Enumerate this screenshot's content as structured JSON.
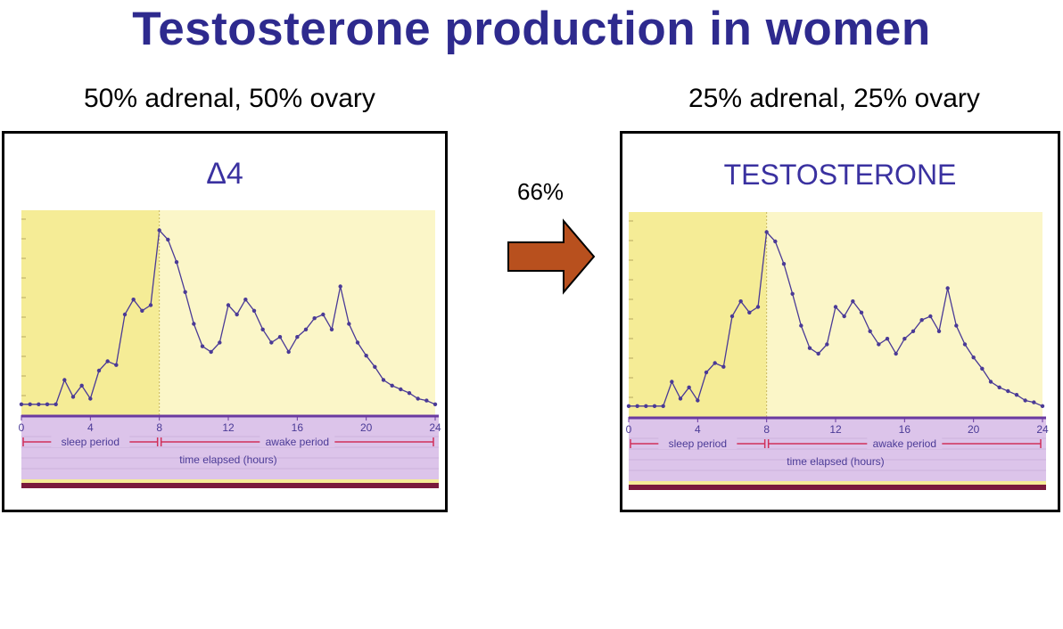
{
  "title": "Testosterone production in women",
  "left": {
    "subtitle": "50% adrenal, 50% ovary",
    "label": "Δ4"
  },
  "right": {
    "subtitle": "25% adrenal, 25% ovary",
    "label": "TESTOSTERONE"
  },
  "arrow": {
    "label": "66%",
    "color": "#b8501e",
    "icon": "right-arrow-icon"
  },
  "colors": {
    "title": "#2e2a8e",
    "sleep_band": "#f5ec96",
    "awake_band": "#fbf6c8",
    "series": "#4a3a96",
    "axis_band": "#dcc4ea",
    "axis_bar": "#7a1a3c",
    "period_marker": "#d0305a"
  },
  "chart_data": [
    {
      "type": "line",
      "title": "Δ4",
      "x_ticks": [
        "0",
        "4",
        "8",
        "12",
        "16",
        "20",
        "24"
      ],
      "xlim": [
        0,
        24
      ],
      "ylim": [
        0,
        1
      ],
      "xlabel": "time elapsed (hours)",
      "period_labels": [
        "sleep period",
        "awake period"
      ],
      "sleep_period": [
        0,
        8
      ],
      "awake_period": [
        8,
        24
      ],
      "series": [
        {
          "x": [
            0,
            0.5,
            1,
            1.5,
            2,
            2.5,
            3,
            3.5,
            4,
            4.5,
            5,
            5.5,
            6,
            6.5,
            7,
            7.5,
            8,
            8.5,
            9,
            9.5,
            10,
            10.5,
            11,
            11.5,
            12,
            12.5,
            13,
            13.5,
            14,
            14.5,
            15,
            15.5,
            16,
            16.5,
            17,
            17.5,
            18,
            18.5,
            19,
            19.5,
            20,
            20.5,
            21,
            21.5,
            22,
            22.5,
            23,
            23.5,
            24
          ],
          "y": [
            0.02,
            0.02,
            0.02,
            0.02,
            0.02,
            0.15,
            0.06,
            0.12,
            0.05,
            0.2,
            0.25,
            0.23,
            0.5,
            0.58,
            0.52,
            0.55,
            0.95,
            0.9,
            0.78,
            0.62,
            0.45,
            0.33,
            0.3,
            0.35,
            0.55,
            0.5,
            0.58,
            0.52,
            0.42,
            0.35,
            0.38,
            0.3,
            0.38,
            0.42,
            0.48,
            0.5,
            0.42,
            0.65,
            0.45,
            0.35,
            0.28,
            0.22,
            0.15,
            0.12,
            0.1,
            0.08,
            0.05,
            0.04,
            0.02
          ]
        }
      ]
    },
    {
      "type": "line",
      "title": "TESTOSTERONE",
      "x_ticks": [
        "0",
        "4",
        "8",
        "12",
        "16",
        "20",
        "24"
      ],
      "xlim": [
        0,
        24
      ],
      "ylim": [
        0,
        1
      ],
      "xlabel": "time elapsed (hours)",
      "period_labels": [
        "sleep period",
        "awake period"
      ],
      "sleep_period": [
        0,
        8
      ],
      "awake_period": [
        8,
        24
      ],
      "series": [
        {
          "x": [
            0,
            0.5,
            1,
            1.5,
            2,
            2.5,
            3,
            3.5,
            4,
            4.5,
            5,
            5.5,
            6,
            6.5,
            7,
            7.5,
            8,
            8.5,
            9,
            9.5,
            10,
            10.5,
            11,
            11.5,
            12,
            12.5,
            13,
            13.5,
            14,
            14.5,
            15,
            15.5,
            16,
            16.5,
            17,
            17.5,
            18,
            18.5,
            19,
            19.5,
            20,
            20.5,
            21,
            21.5,
            22,
            22.5,
            23,
            23.5,
            24
          ],
          "y": [
            0.02,
            0.02,
            0.02,
            0.02,
            0.02,
            0.15,
            0.06,
            0.12,
            0.05,
            0.2,
            0.25,
            0.23,
            0.5,
            0.58,
            0.52,
            0.55,
            0.95,
            0.9,
            0.78,
            0.62,
            0.45,
            0.33,
            0.3,
            0.35,
            0.55,
            0.5,
            0.58,
            0.52,
            0.42,
            0.35,
            0.38,
            0.3,
            0.38,
            0.42,
            0.48,
            0.5,
            0.42,
            0.65,
            0.45,
            0.35,
            0.28,
            0.22,
            0.15,
            0.12,
            0.1,
            0.08,
            0.05,
            0.04,
            0.02
          ]
        }
      ]
    }
  ]
}
